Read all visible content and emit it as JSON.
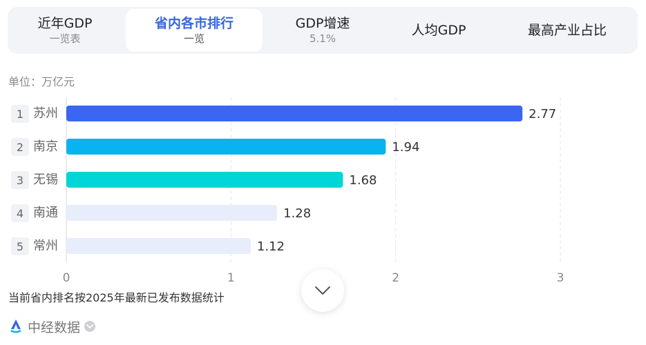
{
  "tabs": [
    {
      "main": "近年GDP",
      "sub": "一览表",
      "active": false
    },
    {
      "main": "省内各市排行",
      "sub": "一览",
      "active": true
    },
    {
      "main": "GDP增速",
      "sub": "5.1%",
      "active": false
    },
    {
      "main": "人均GDP",
      "sub": "",
      "active": false
    },
    {
      "main": "最高产业占比",
      "sub": "",
      "active": false
    }
  ],
  "unit_label": "单位：万亿元",
  "footnote": "当前省内排名按2025年最新已发布数据统计",
  "brand": {
    "name": "中经数据",
    "icon": "zhongjing-logo-icon"
  },
  "colors": {
    "accent": "#3866e0",
    "bar_1": "#3a66f3",
    "bar_2": "#09b3f0",
    "bar_3": "#00d6d6",
    "bar_rest": "#e8edfb"
  },
  "chart_data": {
    "type": "bar",
    "orientation": "horizontal",
    "categories": [
      "苏州",
      "南京",
      "无锡",
      "南通",
      "常州"
    ],
    "ranks": [
      "1",
      "2",
      "3",
      "4",
      "5"
    ],
    "values": [
      2.77,
      1.94,
      1.68,
      1.28,
      1.12
    ],
    "value_labels": [
      "2.77",
      "1.94",
      "1.68",
      "1.28",
      "1.12"
    ],
    "xlim": [
      0,
      3
    ],
    "xticks": [
      0,
      1,
      2,
      3
    ],
    "grid": true
  }
}
